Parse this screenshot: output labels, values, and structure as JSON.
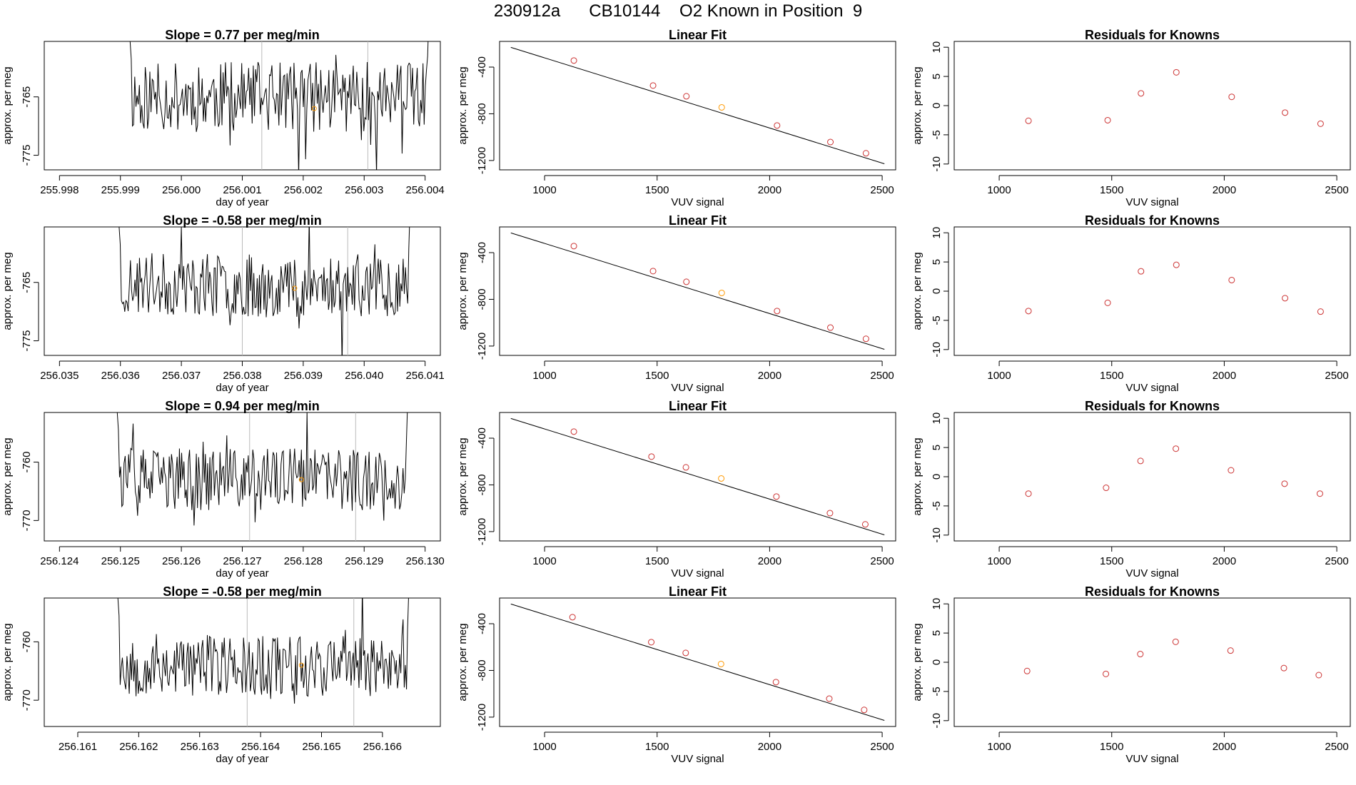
{
  "figure": {
    "title": "230912a      CB10144    O2 Known in Position  9"
  },
  "colors": {
    "line": "#000000",
    "point_known": "#cc3333",
    "point_highlight": "#ff9900",
    "vline": "#bbbbbb"
  },
  "chart_data": [
    {
      "type": "line",
      "row": 0,
      "col": 0,
      "title": "Slope =  0.77  per meg/min",
      "xlabel": "day of year",
      "ylabel": "approx. per meg",
      "xlim": [
        255.99775,
        256.00425
      ],
      "ylim": [
        -777.5,
        -755.5
      ],
      "xticks": [
        255.998,
        255.999,
        256.0,
        256.001,
        256.002,
        256.003,
        256.004
      ],
      "xtick_labels": [
        "255.998",
        "255.999",
        "256.000",
        "256.001",
        "256.002",
        "256.003",
        "256.004"
      ],
      "yticks": [
        -765,
        -775
      ],
      "ytick_labels": [
        "-765",
        "-775"
      ],
      "series_x_range": [
        255.99914,
        256.00408
      ],
      "series_y_center": -765,
      "series_y_spread": 5,
      "seed": 11,
      "vlines": [
        256.00132,
        256.00306
      ],
      "highlight_point": {
        "x": 256.00218,
        "y": -767
      }
    },
    {
      "type": "scatter",
      "row": 0,
      "col": 1,
      "title": "Linear Fit",
      "xlabel": "VUV signal",
      "ylabel": "approx. per meg",
      "xlim": [
        800,
        2560
      ],
      "ylim": [
        -1280,
        -180
      ],
      "xticks": [
        1000,
        1500,
        2000,
        2500
      ],
      "xtick_labels": [
        "1000",
        "1500",
        "2000",
        "2500"
      ],
      "yticks": [
        -400,
        -800,
        -1200
      ],
      "ytick_labels": [
        "-400",
        "-800",
        "-1200"
      ],
      "fit_line": {
        "x": [
          850,
          2510
        ],
        "y": [
          -231,
          -1228
        ]
      },
      "points": [
        {
          "x": 1130,
          "y": -344
        },
        {
          "x": 1482,
          "y": -558
        },
        {
          "x": 1630,
          "y": -650
        },
        {
          "x": 1787,
          "y": -745,
          "highlight": true
        },
        {
          "x": 2033,
          "y": -900
        },
        {
          "x": 2270,
          "y": -1042
        },
        {
          "x": 2428,
          "y": -1138
        }
      ]
    },
    {
      "type": "scatter",
      "row": 0,
      "col": 2,
      "title": "Residuals for Knowns",
      "xlabel": "VUV signal",
      "ylabel": "approx. per meg",
      "xlim": [
        800,
        2560
      ],
      "ylim": [
        -11,
        11
      ],
      "xticks": [
        1000,
        1500,
        2000,
        2500
      ],
      "xtick_labels": [
        "1000",
        "1500",
        "2000",
        "2500"
      ],
      "yticks": [
        10,
        5,
        0,
        -5,
        -10
      ],
      "ytick_labels": [
        "10",
        "5",
        "0",
        "-5",
        "-10"
      ],
      "points": [
        {
          "x": 1130,
          "y": -2.6
        },
        {
          "x": 1482,
          "y": -2.5
        },
        {
          "x": 1630,
          "y": 2.1
        },
        {
          "x": 1787,
          "y": 5.7
        },
        {
          "x": 2033,
          "y": 1.5
        },
        {
          "x": 2270,
          "y": -1.2
        },
        {
          "x": 2428,
          "y": -3.1
        }
      ]
    },
    {
      "type": "line",
      "row": 1,
      "col": 0,
      "title": "Slope =  -0.58  per meg/min",
      "xlabel": "day of year",
      "ylabel": "approx. per meg",
      "xlim": [
        256.03475,
        256.04125
      ],
      "ylim": [
        -777.5,
        -755.5
      ],
      "xticks": [
        256.035,
        256.036,
        256.037,
        256.038,
        256.039,
        256.04,
        256.041
      ],
      "xtick_labels": [
        "256.035",
        "256.036",
        "256.037",
        "256.038",
        "256.039",
        "256.040",
        "256.041"
      ],
      "yticks": [
        -765,
        -775
      ],
      "ytick_labels": [
        "-765",
        "-775"
      ],
      "series_x_range": [
        256.03596,
        256.04077
      ],
      "series_y_center": -765.5,
      "series_y_spread": 4.5,
      "seed": 23,
      "vlines": [
        256.038,
        256.03973
      ],
      "highlight_point": {
        "x": 256.03886,
        "y": -766
      }
    },
    {
      "type": "scatter",
      "row": 1,
      "col": 1,
      "title": "Linear Fit",
      "xlabel": "VUV signal",
      "ylabel": "approx. per meg",
      "xlim": [
        800,
        2560
      ],
      "ylim": [
        -1280,
        -180
      ],
      "xticks": [
        1000,
        1500,
        2000,
        2500
      ],
      "xtick_labels": [
        "1000",
        "1500",
        "2000",
        "2500"
      ],
      "yticks": [
        -400,
        -800,
        -1200
      ],
      "ytick_labels": [
        "-400",
        "-800",
        "-1200"
      ],
      "fit_line": {
        "x": [
          850,
          2510
        ],
        "y": [
          -231,
          -1228
        ]
      },
      "points": [
        {
          "x": 1130,
          "y": -344
        },
        {
          "x": 1482,
          "y": -558
        },
        {
          "x": 1630,
          "y": -650
        },
        {
          "x": 1787,
          "y": -745,
          "highlight": true
        },
        {
          "x": 2033,
          "y": -900
        },
        {
          "x": 2270,
          "y": -1042
        },
        {
          "x": 2428,
          "y": -1138
        }
      ]
    },
    {
      "type": "scatter",
      "row": 1,
      "col": 2,
      "title": "Residuals for Knowns",
      "xlabel": "VUV signal",
      "ylabel": "approx. per meg",
      "xlim": [
        800,
        2560
      ],
      "ylim": [
        -11,
        11
      ],
      "xticks": [
        1000,
        1500,
        2000,
        2500
      ],
      "xtick_labels": [
        "1000",
        "1500",
        "2000",
        "2500"
      ],
      "yticks": [
        10,
        5,
        0,
        -5,
        -10
      ],
      "ytick_labels": [
        "10",
        "5",
        "0",
        "-5",
        "-10"
      ],
      "points": [
        {
          "x": 1130,
          "y": -3.4
        },
        {
          "x": 1482,
          "y": -2.0
        },
        {
          "x": 1630,
          "y": 3.4
        },
        {
          "x": 1787,
          "y": 4.5
        },
        {
          "x": 2033,
          "y": 1.9
        },
        {
          "x": 2270,
          "y": -1.2
        },
        {
          "x": 2428,
          "y": -3.5
        }
      ]
    },
    {
      "type": "line",
      "row": 2,
      "col": 0,
      "title": "Slope =  0.94  per meg/min",
      "xlabel": "day of year",
      "ylabel": "approx. per meg",
      "xlim": [
        256.12375,
        256.13025
      ],
      "ylim": [
        -773.5,
        -751.5
      ],
      "xticks": [
        256.124,
        256.125,
        256.126,
        256.127,
        256.128,
        256.129,
        256.13
      ],
      "xtick_labels": [
        "256.124",
        "256.125",
        "256.126",
        "256.127",
        "256.128",
        "256.129",
        "256.130"
      ],
      "yticks": [
        -760,
        -770
      ],
      "ytick_labels": [
        "-760",
        "-770"
      ],
      "series_x_range": [
        256.12493,
        256.12973
      ],
      "series_y_center": -763,
      "series_y_spread": 4.5,
      "seed": 37,
      "vlines": [
        256.12712,
        256.12886
      ],
      "highlight_point": {
        "x": 256.12797,
        "y": -763
      }
    },
    {
      "type": "scatter",
      "row": 2,
      "col": 1,
      "title": "Linear Fit",
      "xlabel": "VUV signal",
      "ylabel": "approx. per meg",
      "xlim": [
        800,
        2560
      ],
      "ylim": [
        -1280,
        -180
      ],
      "xticks": [
        1000,
        1500,
        2000,
        2500
      ],
      "xtick_labels": [
        "1000",
        "1500",
        "2000",
        "2500"
      ],
      "yticks": [
        -400,
        -800,
        -1200
      ],
      "ytick_labels": [
        "-400",
        "-800",
        "-1200"
      ],
      "fit_line": {
        "x": [
          850,
          2510
        ],
        "y": [
          -231,
          -1228
        ]
      },
      "points": [
        {
          "x": 1130,
          "y": -344
        },
        {
          "x": 1475,
          "y": -558
        },
        {
          "x": 1628,
          "y": -650
        },
        {
          "x": 1785,
          "y": -745,
          "highlight": true
        },
        {
          "x": 2030,
          "y": -900
        },
        {
          "x": 2268,
          "y": -1042
        },
        {
          "x": 2425,
          "y": -1138
        }
      ]
    },
    {
      "type": "scatter",
      "row": 2,
      "col": 2,
      "title": "Residuals for Knowns",
      "xlabel": "VUV signal",
      "ylabel": "approx. per meg",
      "xlim": [
        800,
        2560
      ],
      "ylim": [
        -11,
        11
      ],
      "xticks": [
        1000,
        1500,
        2000,
        2500
      ],
      "xtick_labels": [
        "1000",
        "1500",
        "2000",
        "2500"
      ],
      "yticks": [
        10,
        5,
        0,
        -5,
        -10
      ],
      "ytick_labels": [
        "10",
        "5",
        "0",
        "-5",
        "-10"
      ],
      "points": [
        {
          "x": 1130,
          "y": -2.9
        },
        {
          "x": 1475,
          "y": -1.9
        },
        {
          "x": 1628,
          "y": 2.7
        },
        {
          "x": 1785,
          "y": 4.8
        },
        {
          "x": 2030,
          "y": 1.1
        },
        {
          "x": 2268,
          "y": -1.2
        },
        {
          "x": 2425,
          "y": -2.9
        }
      ]
    },
    {
      "type": "line",
      "row": 3,
      "col": 0,
      "title": "Slope =  -0.58  per meg/min",
      "xlabel": "day of year",
      "ylabel": "approx. per meg",
      "xlim": [
        256.16045,
        256.16695
      ],
      "ylim": [
        -774.5,
        -752.5
      ],
      "xticks": [
        256.161,
        256.162,
        256.163,
        256.164,
        256.165,
        256.166
      ],
      "xtick_labels": [
        "256.161",
        "256.162",
        "256.163",
        "256.164",
        "256.165",
        "256.166"
      ],
      "yticks": [
        -760,
        -770
      ],
      "ytick_labels": [
        "-760",
        "-770"
      ],
      "series_x_range": [
        256.16164,
        256.16645
      ],
      "series_y_center": -764,
      "series_y_spread": 4.5,
      "seed": 53,
      "vlines": [
        256.16378,
        256.16553
      ],
      "highlight_point": {
        "x": 256.16467,
        "y": -764
      }
    },
    {
      "type": "scatter",
      "row": 3,
      "col": 1,
      "title": "Linear Fit",
      "xlabel": "VUV signal",
      "ylabel": "approx. per meg",
      "xlim": [
        800,
        2560
      ],
      "ylim": [
        -1280,
        -180
      ],
      "xticks": [
        1000,
        1500,
        2000,
        2500
      ],
      "xtick_labels": [
        "1000",
        "1500",
        "2000",
        "2500"
      ],
      "yticks": [
        -400,
        -800,
        -1200
      ],
      "ytick_labels": [
        "-400",
        "-800",
        "-1200"
      ],
      "fit_line": {
        "x": [
          850,
          2510
        ],
        "y": [
          -231,
          -1228
        ]
      },
      "points": [
        {
          "x": 1124,
          "y": -344
        },
        {
          "x": 1474,
          "y": -558
        },
        {
          "x": 1627,
          "y": -650
        },
        {
          "x": 1784,
          "y": -745,
          "highlight": true
        },
        {
          "x": 2028,
          "y": -900
        },
        {
          "x": 2265,
          "y": -1042
        },
        {
          "x": 2420,
          "y": -1138
        }
      ]
    },
    {
      "type": "scatter",
      "row": 3,
      "col": 2,
      "title": "Residuals for Knowns",
      "xlabel": "VUV signal",
      "ylabel": "approx. per meg",
      "xlim": [
        800,
        2560
      ],
      "ylim": [
        -11,
        11
      ],
      "xticks": [
        1000,
        1500,
        2000,
        2500
      ],
      "xtick_labels": [
        "1000",
        "1500",
        "2000",
        "2500"
      ],
      "yticks": [
        10,
        5,
        0,
        -5,
        -10
      ],
      "ytick_labels": [
        "10",
        "5",
        "0",
        "-5",
        "-10"
      ],
      "points": [
        {
          "x": 1124,
          "y": -1.5
        },
        {
          "x": 1474,
          "y": -2.0
        },
        {
          "x": 1627,
          "y": 1.4
        },
        {
          "x": 1784,
          "y": 3.5
        },
        {
          "x": 2028,
          "y": 2.0
        },
        {
          "x": 2265,
          "y": -1.0
        },
        {
          "x": 2420,
          "y": -2.2
        }
      ]
    }
  ]
}
